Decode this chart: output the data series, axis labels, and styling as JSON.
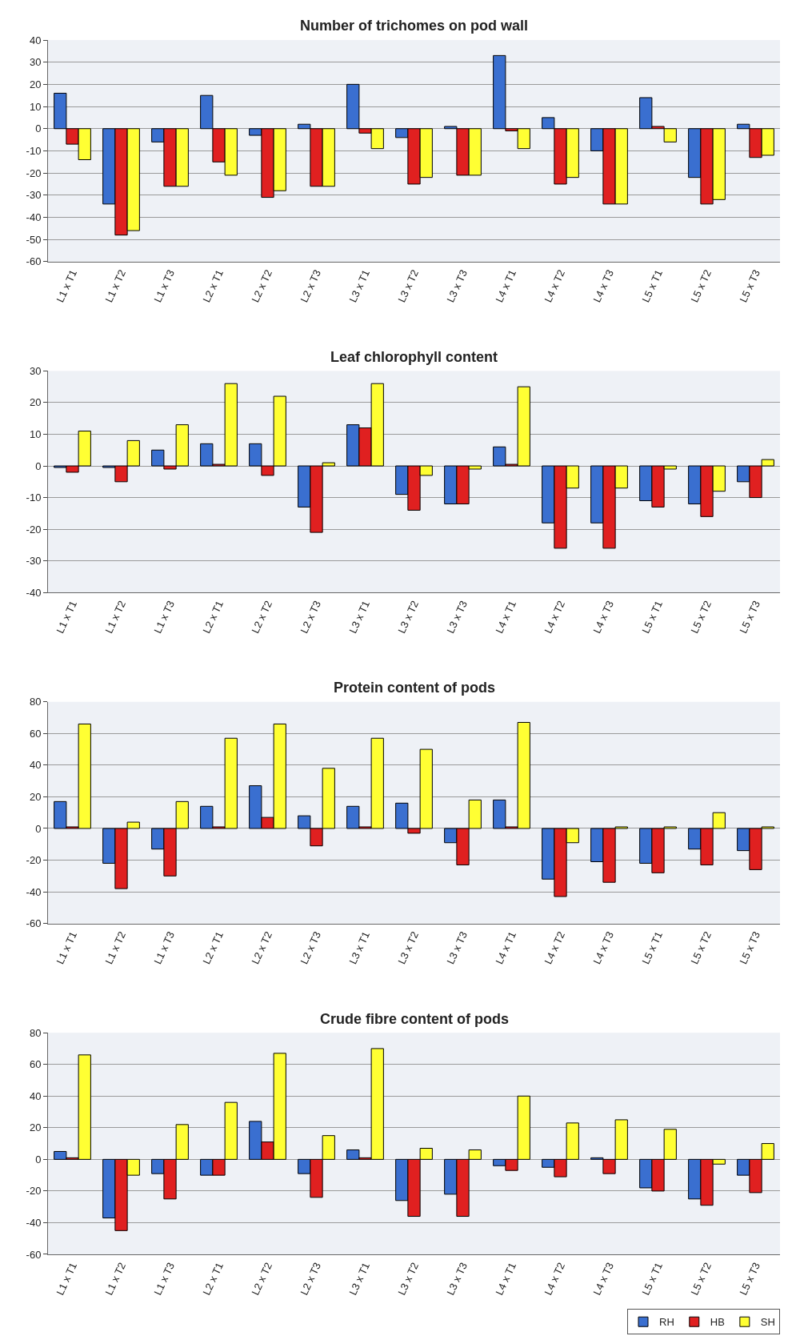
{
  "chart_data": [
    {
      "type": "bar",
      "title": "Number of trichomes on pod wall",
      "categories": [
        "L1 x T1",
        "L1 x T2",
        "L1 x T3",
        "L2 x T1",
        "L2 x T2",
        "L2 x T3",
        "L3 x T1",
        "L3 x T2",
        "L3 x T3",
        "L4 x T1",
        "L4 x T2",
        "L4 x T3",
        "L5 x T1",
        "L5 x T2",
        "L5 x T3"
      ],
      "series": [
        {
          "color": "#3a6fd0",
          "values": [
            16,
            -34,
            -6,
            15,
            -3,
            2,
            20,
            -4,
            1,
            33,
            5,
            -10,
            14,
            -22,
            2
          ]
        },
        {
          "color": "#e02020",
          "values": [
            -7,
            -48,
            -26,
            -15,
            -31,
            -26,
            -2,
            -25,
            -21,
            -1,
            -25,
            -34,
            1,
            -34,
            -13
          ]
        },
        {
          "color": "#ffff33",
          "values": [
            -14,
            -46,
            -26,
            -21,
            -28,
            -26,
            -9,
            -22,
            -21,
            -9,
            -22,
            -34,
            -6,
            -32,
            -12
          ]
        }
      ],
      "ylim": [
        -60,
        40
      ],
      "yticks": [
        -60,
        -50,
        -40,
        -30,
        -20,
        -10,
        0,
        10,
        20,
        30,
        40
      ],
      "grid": "y"
    },
    {
      "type": "bar",
      "title": "Leaf chlorophyll content",
      "categories": [
        "L1 x T1",
        "L1 x T2",
        "L1 x T3",
        "L2 x T1",
        "L2 x T2",
        "L2 x T3",
        "L3 x T1",
        "L3 x T2",
        "L3 x T3",
        "L4 x T1",
        "L4 x T2",
        "L4 x T3",
        "L5 x T1",
        "L5 x T2",
        "L5 x T3"
      ],
      "series": [
        {
          "color": "#3a6fd0",
          "values": [
            -0.5,
            -0.5,
            5,
            7,
            7,
            -13,
            13,
            -9,
            -12,
            6,
            -18,
            -18,
            -11,
            -12,
            -5
          ]
        },
        {
          "color": "#e02020",
          "values": [
            -2,
            -5,
            -1,
            0.5,
            -3,
            -21,
            12,
            -14,
            -12,
            0.5,
            -26,
            -26,
            -13,
            -16,
            -10
          ]
        },
        {
          "color": "#ffff33",
          "values": [
            11,
            8,
            13,
            26,
            22,
            1,
            26,
            -3,
            -1,
            25,
            -7,
            -7,
            -1,
            -8,
            2
          ]
        }
      ],
      "ylim": [
        -40,
        30
      ],
      "yticks": [
        -40,
        -30,
        -20,
        -10,
        0,
        10,
        20,
        30
      ],
      "grid": "y"
    },
    {
      "type": "bar",
      "title": "Protein content of pods",
      "categories": [
        "L1 x T1",
        "L1 x T2",
        "L1 x T3",
        "L2 x T1",
        "L2 x T2",
        "L2 x T3",
        "L3 x T1",
        "L3 x T2",
        "L3 x T3",
        "L4 x T1",
        "L4 x T2",
        "L4 x T3",
        "L5 x T1",
        "L5 x T2",
        "L5 x T3"
      ],
      "series": [
        {
          "color": "#3a6fd0",
          "values": [
            17,
            -22,
            -13,
            14,
            27,
            8,
            14,
            16,
            -9,
            18,
            -32,
            -21,
            -22,
            -13,
            -14
          ]
        },
        {
          "color": "#e02020",
          "values": [
            1,
            -38,
            -30,
            1,
            7,
            -11,
            1,
            -3,
            -23,
            1,
            -43,
            -34,
            -28,
            -23,
            -26
          ]
        },
        {
          "color": "#ffff33",
          "values": [
            66,
            4,
            17,
            57,
            66,
            38,
            57,
            50,
            18,
            67,
            -9,
            1,
            1,
            10,
            1
          ]
        }
      ],
      "ylim": [
        -60,
        80
      ],
      "yticks": [
        -60,
        -40,
        -20,
        0,
        20,
        40,
        60,
        80
      ],
      "grid": "y"
    },
    {
      "type": "bar",
      "title": "Crude fibre content of pods",
      "categories": [
        "L1 x T1",
        "L1 x T2",
        "L1 x T3",
        "L2 x T1",
        "L2 x T2",
        "L2 x T3",
        "L3 x T1",
        "L3 x T2",
        "L3 x T3",
        "L4 x T1",
        "L4 x T2",
        "L4 x T3",
        "L5 x T1",
        "L5 x T2",
        "L5 x T3"
      ],
      "series": [
        {
          "name": "RH",
          "color": "#3a6fd0",
          "values": [
            5,
            -37,
            -9,
            -10,
            24,
            -9,
            6,
            -26,
            -22,
            -4,
            -5,
            1,
            -18,
            -25,
            -10
          ]
        },
        {
          "name": "HB",
          "color": "#e02020",
          "values": [
            1,
            -45,
            -25,
            -10,
            11,
            -24,
            1,
            -36,
            -36,
            -7,
            -11,
            -9,
            -20,
            -29,
            -21
          ]
        },
        {
          "name": "SH",
          "color": "#ffff33",
          "values": [
            66,
            -10,
            22,
            36,
            67,
            15,
            70,
            7,
            6,
            40,
            23,
            25,
            19,
            -3,
            10
          ]
        }
      ],
      "ylim": [
        -60,
        80
      ],
      "yticks": [
        -60,
        -40,
        -20,
        0,
        20,
        40,
        60,
        80
      ],
      "grid": "y",
      "legend": "bottom right"
    }
  ]
}
